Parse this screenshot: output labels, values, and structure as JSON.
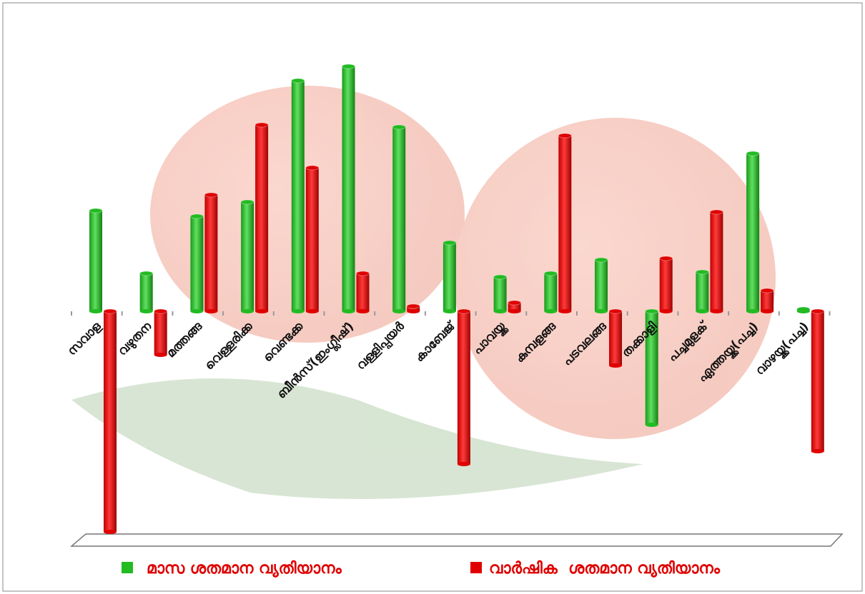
{
  "chart_data": {
    "type": "bar",
    "categories": [
      "സവാള",
      "വഴുതന",
      "മത്തങ്ങ",
      "വെള്ളരിക്ക",
      "വെണ്ടക്ക",
      "ബീൻസ്(ഇംഗ്ലീഷ്)",
      "വള്ളിപ്പയർ",
      "കാബേജ്",
      "പാവയ്ക്ക",
      "കുമ്പളങ്ങ",
      "പടവലങ്ങ",
      "തക്കാളി",
      "പച്ചമുളക്",
      "ഏത്തയ്ക്ക(പച്ച)",
      "വാഴയ്ക്ക(പച്ച)"
    ],
    "series": [
      {
        "name": "മാസ ശതമാന വ്യതിയാനം",
        "color": "#22bb22",
        "values": [
          14.1,
          5.3,
          13.3,
          15.3,
          32.3,
          34.3,
          25.8,
          9.6,
          4.8,
          5.3,
          7.2,
          -15.9,
          5.5,
          22.1,
          0.3
        ]
      },
      {
        "name": "വാർഷിക  ശതമാന വ്യതിയാനം",
        "color": "#e00000",
        "values": [
          -30.9,
          -6.1,
          16.3,
          26.1,
          20.1,
          5.3,
          0.7,
          -21.4,
          1.2,
          24.6,
          -7.6,
          7.4,
          13.9,
          2.9,
          -19.6
        ]
      }
    ],
    "ylim": [
      -32,
      38
    ]
  }
}
